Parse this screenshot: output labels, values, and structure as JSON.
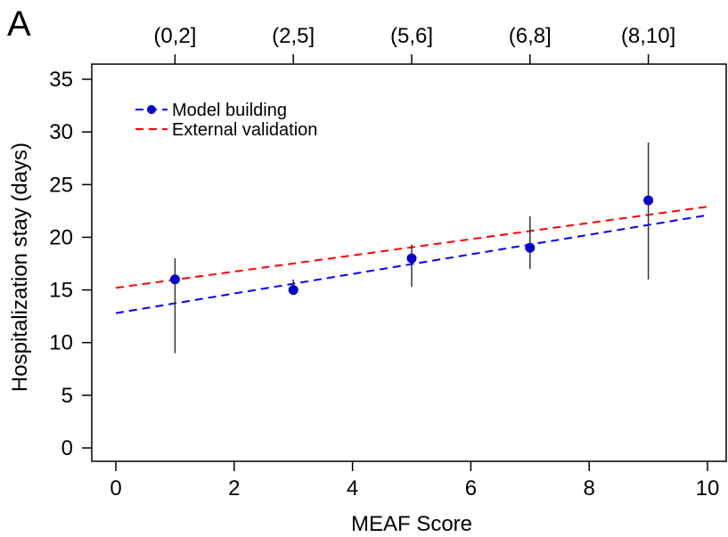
{
  "panel_label": "A",
  "chart_data": {
    "type": "scatter",
    "xlabel": "MEAF Score",
    "ylabel": "Hospitalization stay (days)",
    "xlim": [
      0,
      10
    ],
    "ylim": [
      0,
      35
    ],
    "x_ticks": [
      0,
      2,
      4,
      6,
      8,
      10
    ],
    "y_ticks": [
      0,
      5,
      10,
      15,
      20,
      25,
      30,
      35
    ],
    "top_axis": {
      "ticks": [
        1,
        3,
        5,
        7,
        9
      ],
      "labels": [
        "(0,2]",
        "(2,5]",
        "(5,6]",
        "(6,8]",
        "(8,10]"
      ]
    },
    "points": {
      "x": [
        1,
        3,
        5,
        7,
        9
      ],
      "y": [
        16,
        15,
        18,
        19,
        23.5
      ],
      "err_low": [
        9,
        15,
        15.3,
        17,
        16
      ],
      "err_high": [
        18,
        16,
        19.3,
        22,
        29
      ],
      "color": "#0000cc"
    },
    "series": [
      {
        "name": "Model building",
        "x": [
          0,
          10
        ],
        "y": [
          12.8,
          22.1
        ],
        "color": "#0000ff",
        "style": "dashed",
        "marker": "circle"
      },
      {
        "name": "External validation",
        "x": [
          0,
          10
        ],
        "y": [
          15.2,
          22.9
        ],
        "color": "#ff0000",
        "style": "dashed"
      }
    ],
    "legend_position": "top-left",
    "grid": false
  }
}
